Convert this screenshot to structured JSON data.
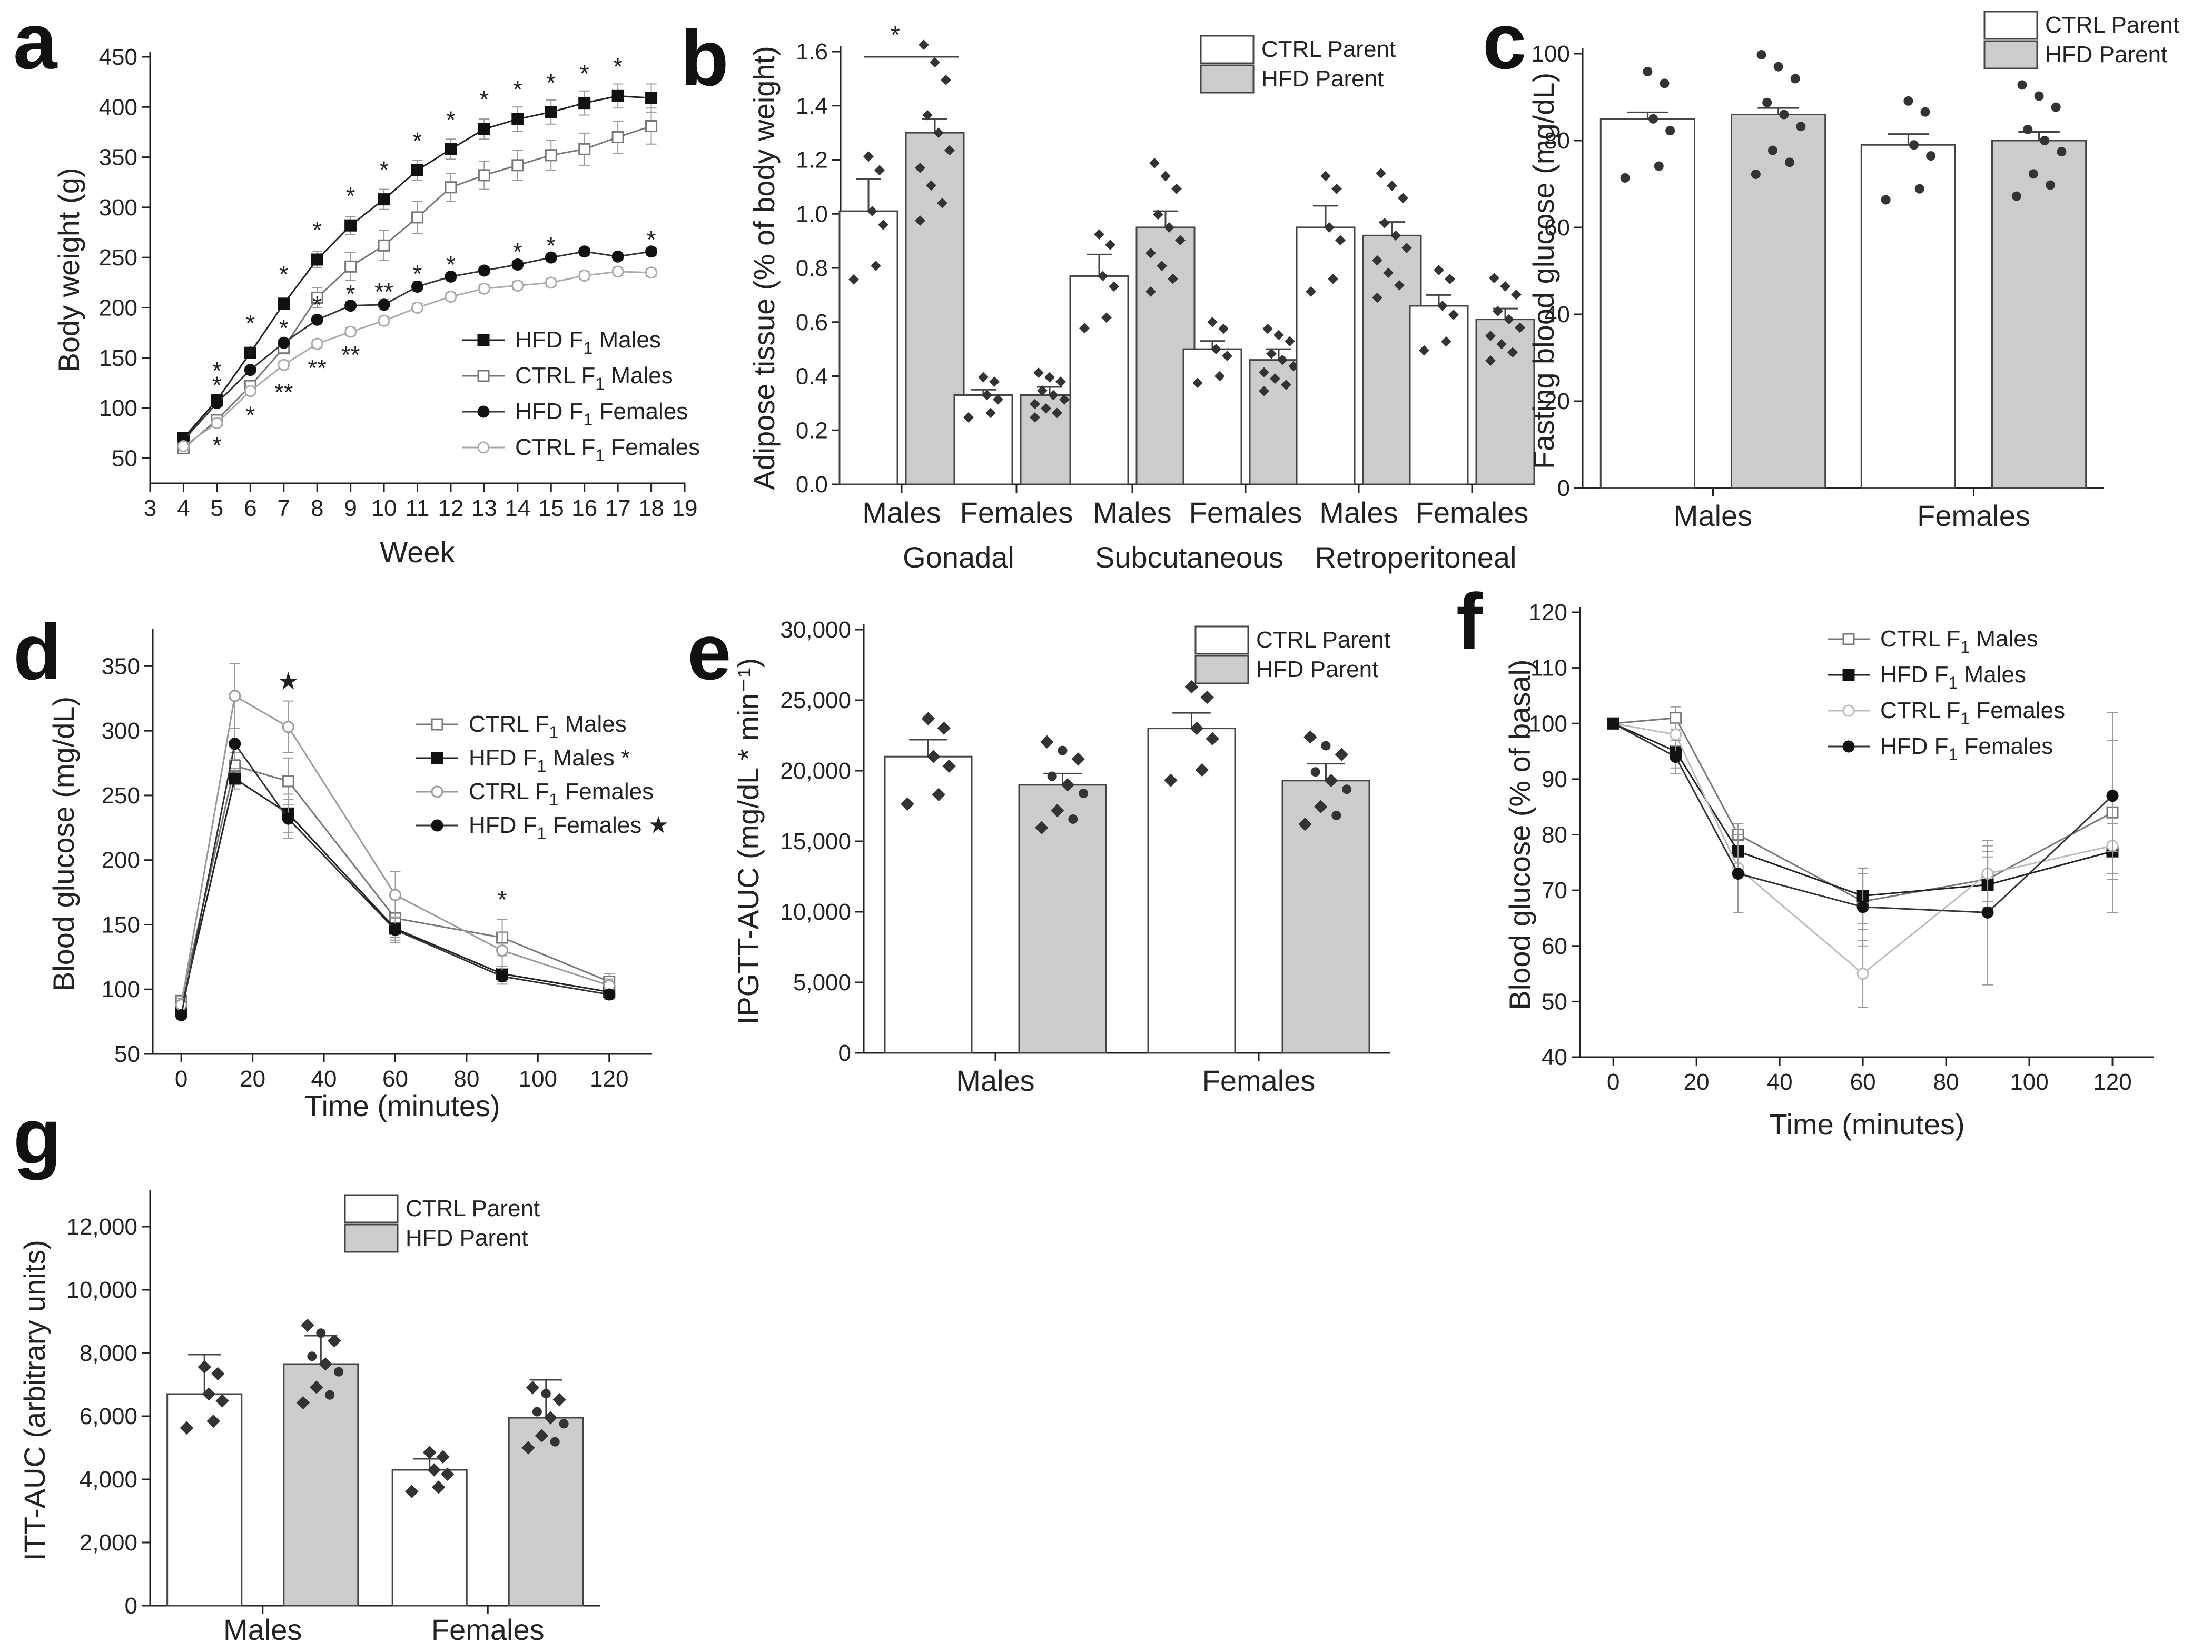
{
  "chart_data": [
    {
      "panel": "a",
      "type": "line",
      "xlabel": "Week",
      "ylabel": "Body weight (g)",
      "xlim": [
        3,
        19
      ],
      "ylim": [
        25,
        450
      ],
      "xticks": [
        "3",
        "4",
        "5",
        "6",
        "7",
        "8",
        "9",
        "10",
        "11",
        "12",
        "13",
        "14",
        "15",
        "16",
        "17",
        "18",
        "19"
      ],
      "yticks": [
        "50",
        "100",
        "150",
        "200",
        "250",
        "300",
        "350",
        "400",
        "450"
      ],
      "x": [
        4,
        5,
        6,
        7,
        8,
        9,
        10,
        11,
        12,
        13,
        14,
        15,
        16,
        17,
        18
      ],
      "series": [
        {
          "name": "HFD F1 Males",
          "label_main": "HFD F",
          "label_sub": "1",
          "label_rest": " Males",
          "marker": "square-filled",
          "color": "#222222",
          "values": [
            70,
            108,
            155,
            204,
            248,
            282,
            308,
            337,
            358,
            378,
            388,
            395,
            404,
            411,
            409
          ]
        },
        {
          "name": "CTRL F1 Males",
          "label_main": "CTRL F",
          "label_sub": "1",
          "label_rest": " Males",
          "marker": "square-open",
          "color": "#777777",
          "values": [
            60,
            88,
            122,
            160,
            210,
            241,
            262,
            290,
            320,
            332,
            342,
            352,
            358,
            370,
            381
          ]
        },
        {
          "name": "HFD F1 Females",
          "label_main": "HFD F",
          "label_sub": "1",
          "label_rest": " Females",
          "marker": "circle-filled",
          "color": "#333333",
          "values": [
            68,
            105,
            138,
            165,
            188,
            202,
            203,
            221,
            231,
            237,
            243,
            250,
            256,
            251,
            256
          ]
        },
        {
          "name": "CTRL F1 Females",
          "label_main": "CTRL F",
          "label_sub": "1",
          "label_rest": " Females",
          "marker": "circle-open",
          "color": "#aaaaaa",
          "values": [
            62,
            85,
            117,
            143,
            164,
            176,
            187,
            200,
            211,
            219,
            222,
            225,
            232,
            236,
            235
          ]
        }
      ],
      "sig_upper": [
        {
          "x": 5,
          "text": "*"
        },
        {
          "x": 6,
          "text": "*"
        },
        {
          "x": 7,
          "text": "*"
        },
        {
          "x": 8,
          "text": "*"
        },
        {
          "x": 9,
          "text": "*"
        },
        {
          "x": 10,
          "text": "*"
        },
        {
          "x": 11,
          "text": "*"
        },
        {
          "x": 12,
          "text": "*"
        },
        {
          "x": 13,
          "text": "*"
        },
        {
          "x": 14,
          "text": "*"
        },
        {
          "x": 15,
          "text": "*"
        },
        {
          "x": 16,
          "text": "*"
        },
        {
          "x": 17,
          "text": "*"
        }
      ],
      "sig_lower": [
        {
          "x": 5,
          "text": "*",
          "y": 125
        },
        {
          "x": 6,
          "text": "*",
          "y": 155
        },
        {
          "x": 7,
          "text": "*",
          "y": 182
        },
        {
          "x": 8,
          "text": "*",
          "y": 205
        },
        {
          "x": 9,
          "text": "*",
          "y": 216
        },
        {
          "x": 10,
          "text": "**",
          "y": 218
        },
        {
          "x": 11,
          "text": "*",
          "y": 236
        },
        {
          "x": 12,
          "text": "*",
          "y": 245
        },
        {
          "x": 14,
          "text": "*",
          "y": 258
        },
        {
          "x": 15,
          "text": "*",
          "y": 264
        },
        {
          "x": 18,
          "text": "*",
          "y": 270
        }
      ],
      "sig_lower2": [
        {
          "x": 5,
          "text": "*",
          "y": 65
        },
        {
          "x": 6,
          "text": "*",
          "y": 95
        },
        {
          "x": 7,
          "text": "**",
          "y": 118
        },
        {
          "x": 8,
          "text": "**",
          "y": 142
        },
        {
          "x": 9,
          "text": "**",
          "y": 155
        }
      ]
    },
    {
      "panel": "b",
      "type": "bar",
      "ylabel": "Adipose tissue (% of body weight)",
      "ylim": [
        0,
        1.6
      ],
      "yticks": [
        "0.0",
        "0.2",
        "0.4",
        "0.6",
        "0.8",
        "1.0",
        "1.2",
        "1.4",
        "1.6"
      ],
      "groups": [
        "Gonadal",
        "Subcutaneous",
        "Retroperitoneal"
      ],
      "categories": [
        "Males",
        "Females",
        "Males",
        "Females",
        "Males",
        "Females"
      ],
      "legend": [
        "CTRL Parent",
        "HFD Parent"
      ],
      "ctrl": [
        1.01,
        0.33,
        0.77,
        0.5,
        0.95,
        0.66
      ],
      "hfd": [
        1.3,
        0.33,
        0.95,
        0.46,
        0.92,
        0.61
      ],
      "ctrl_err": [
        0.12,
        0.02,
        0.08,
        0.03,
        0.08,
        0.04
      ],
      "hfd_err": [
        0.05,
        0.03,
        0.06,
        0.04,
        0.05,
        0.04
      ],
      "significance": "*"
    },
    {
      "panel": "c",
      "type": "bar",
      "ylabel": "Fasting blood glucose (mg/dL)",
      "ylim": [
        0,
        100
      ],
      "yticks": [
        "0",
        "20",
        "40",
        "60",
        "80",
        "100"
      ],
      "categories": [
        "Males",
        "Females"
      ],
      "legend": [
        "CTRL Parent",
        "HFD Parent"
      ],
      "ctrl": [
        85,
        79
      ],
      "hfd": [
        86,
        80
      ],
      "ctrl_err": [
        1.5,
        2.5
      ],
      "hfd_err": [
        1.5,
        2
      ]
    },
    {
      "panel": "d",
      "type": "line",
      "xlabel": "Time (minutes)",
      "ylabel": "Blood glucose (mg/dL)",
      "xlim": [
        -8,
        132
      ],
      "ylim": [
        50,
        375
      ],
      "xticks": [
        "0",
        "20",
        "40",
        "60",
        "80",
        "100",
        "120"
      ],
      "yticks": [
        "50",
        "100",
        "150",
        "200",
        "250",
        "300",
        "350"
      ],
      "x": [
        0,
        15,
        30,
        60,
        90,
        120
      ],
      "series": [
        {
          "name": "CTRL F1 Males",
          "label_main": "CTRL F",
          "label_sub": "1",
          "label_rest": " Males",
          "marker": "square-open",
          "color": "#777777",
          "values": [
            91,
            273,
            261,
            155,
            140,
            106
          ]
        },
        {
          "name": "HFD F1 Males *",
          "label_main": "HFD F",
          "label_sub": "1",
          "label_rest": " Males *",
          "marker": "square-filled",
          "color": "#222222",
          "values": [
            85,
            263,
            236,
            147,
            112,
            98
          ]
        },
        {
          "name": "CTRL F1 Females",
          "label_main": "CTRL F",
          "label_sub": "1",
          "label_rest": " Females",
          "marker": "circle-open",
          "color": "#999999",
          "values": [
            88,
            327,
            303,
            173,
            130,
            103
          ]
        },
        {
          "name": "HFD F1 Females ★",
          "label_main": "HFD F",
          "label_sub": "1",
          "label_rest": " Females ★",
          "marker": "circle-filled",
          "color": "#333333",
          "values": [
            80,
            290,
            232,
            146,
            110,
            96
          ]
        }
      ],
      "annotations": [
        {
          "x": 30,
          "y": 332,
          "text": "★"
        },
        {
          "x": 90,
          "y": 163,
          "text": "*"
        }
      ]
    },
    {
      "panel": "e",
      "type": "bar",
      "ylabel": "IPGTT-AUC (mg/dL * min⁻¹)",
      "ylim": [
        0,
        30000
      ],
      "yticks": [
        "0",
        "5,000",
        "10,000",
        "15,000",
        "20,000",
        "25,000",
        "30,000"
      ],
      "categories": [
        "Males",
        "Females"
      ],
      "legend": [
        "CTRL Parent",
        "HFD Parent"
      ],
      "ctrl": [
        21000,
        23000
      ],
      "hfd": [
        19000,
        19300
      ],
      "ctrl_err": [
        1200,
        1100
      ],
      "hfd_err": [
        800,
        1200
      ]
    },
    {
      "panel": "f",
      "type": "line",
      "xlabel": "Time (minutes)",
      "ylabel": "Blood glucose (% of basal)",
      "xlim": [
        -8,
        130
      ],
      "ylim": [
        40,
        120
      ],
      "xticks": [
        "0",
        "20",
        "40",
        "60",
        "80",
        "100",
        "120"
      ],
      "yticks": [
        "40",
        "50",
        "60",
        "70",
        "80",
        "90",
        "100",
        "110",
        "120"
      ],
      "x": [
        0,
        15,
        30,
        60,
        90,
        120
      ],
      "series": [
        {
          "name": "CTRL F1 Males",
          "label_main": "CTRL F",
          "label_sub": "1",
          "label_rest": " Males",
          "marker": "square-open",
          "color": "#777777",
          "values": [
            100,
            101,
            80,
            68,
            72,
            84
          ]
        },
        {
          "name": "HFD F1 Males",
          "label_main": "HFD F",
          "label_sub": "1",
          "label_rest": " Males",
          "marker": "square-filled",
          "color": "#222222",
          "values": [
            100,
            95,
            77,
            69,
            71,
            77
          ]
        },
        {
          "name": "CTRL F1 Females",
          "label_main": "CTRL F",
          "label_sub": "1",
          "label_rest": " Females",
          "marker": "circle-open",
          "color": "#bbbbbb",
          "values": [
            100,
            98,
            74,
            55,
            73,
            78
          ]
        },
        {
          "name": "HFD F1 Females",
          "label_main": "HFD F",
          "label_sub": "1",
          "label_rest": " Females",
          "marker": "circle-filled",
          "color": "#333333",
          "values": [
            100,
            94,
            73,
            67,
            66,
            87
          ]
        }
      ]
    },
    {
      "panel": "g",
      "type": "bar",
      "ylabel": "ITT-AUC (arbitrary units)",
      "ylim": [
        0,
        13000
      ],
      "yticks": [
        "0",
        "2,000",
        "4,000",
        "6,000",
        "8,000",
        "10,000",
        "12,000"
      ],
      "categories": [
        "Males",
        "Females"
      ],
      "legend": [
        "CTRL Parent",
        "HFD Parent"
      ],
      "ctrl": [
        6700,
        4300
      ],
      "hfd": [
        7650,
        5950
      ],
      "ctrl_err": [
        1250,
        350
      ],
      "hfd_err": [
        900,
        1200
      ]
    }
  ],
  "panel_letters": [
    "a",
    "b",
    "c",
    "d",
    "e",
    "f",
    "g"
  ]
}
